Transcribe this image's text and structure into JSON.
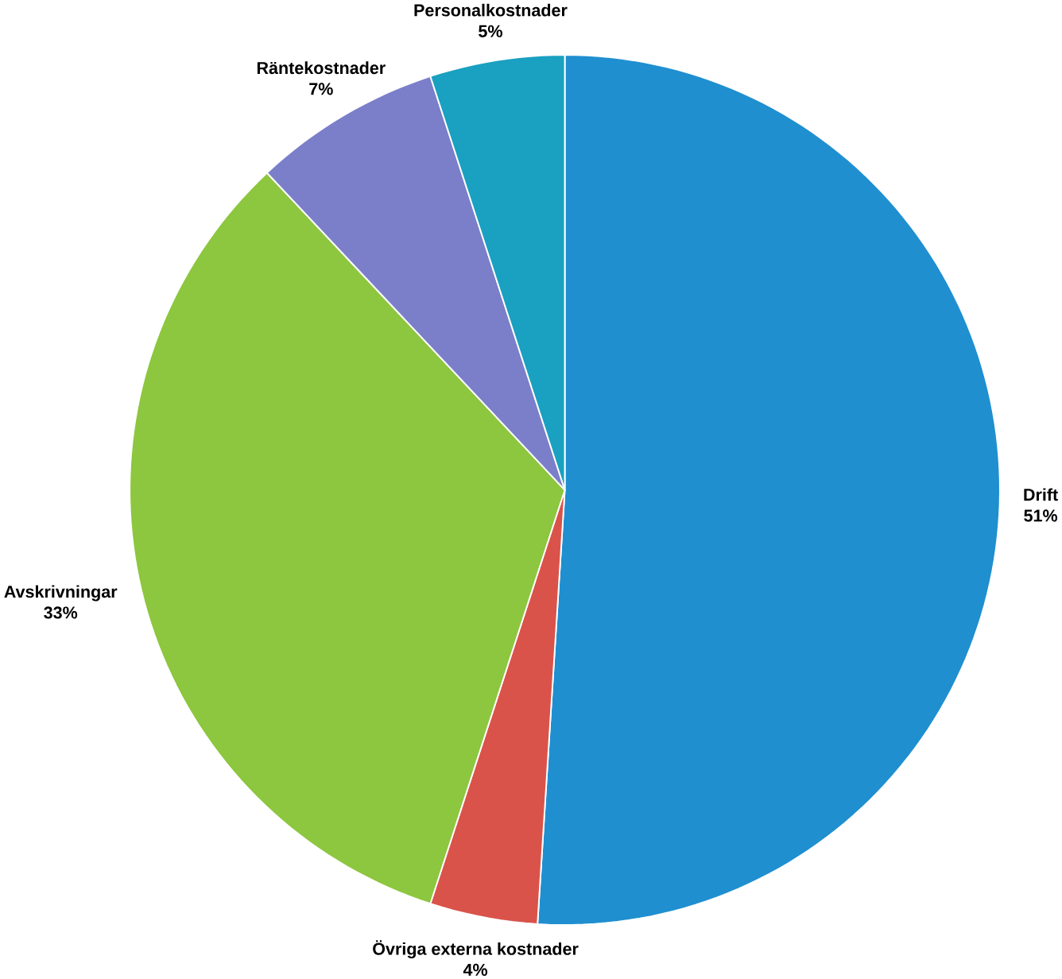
{
  "chart_data": {
    "type": "pie",
    "categories": [
      "Drift",
      "Övriga externa kostnader",
      "Avskrivningar",
      "Räntekostnader",
      "Personalkostnader"
    ],
    "values": [
      51,
      4,
      33,
      7,
      5
    ],
    "value_labels": [
      "51%",
      "4%",
      "33%",
      "7%",
      "5%"
    ],
    "colors": [
      "#1f8fd0",
      "#d9534a",
      "#8dc63f",
      "#7b7fc9",
      "#1aa0c0"
    ]
  }
}
